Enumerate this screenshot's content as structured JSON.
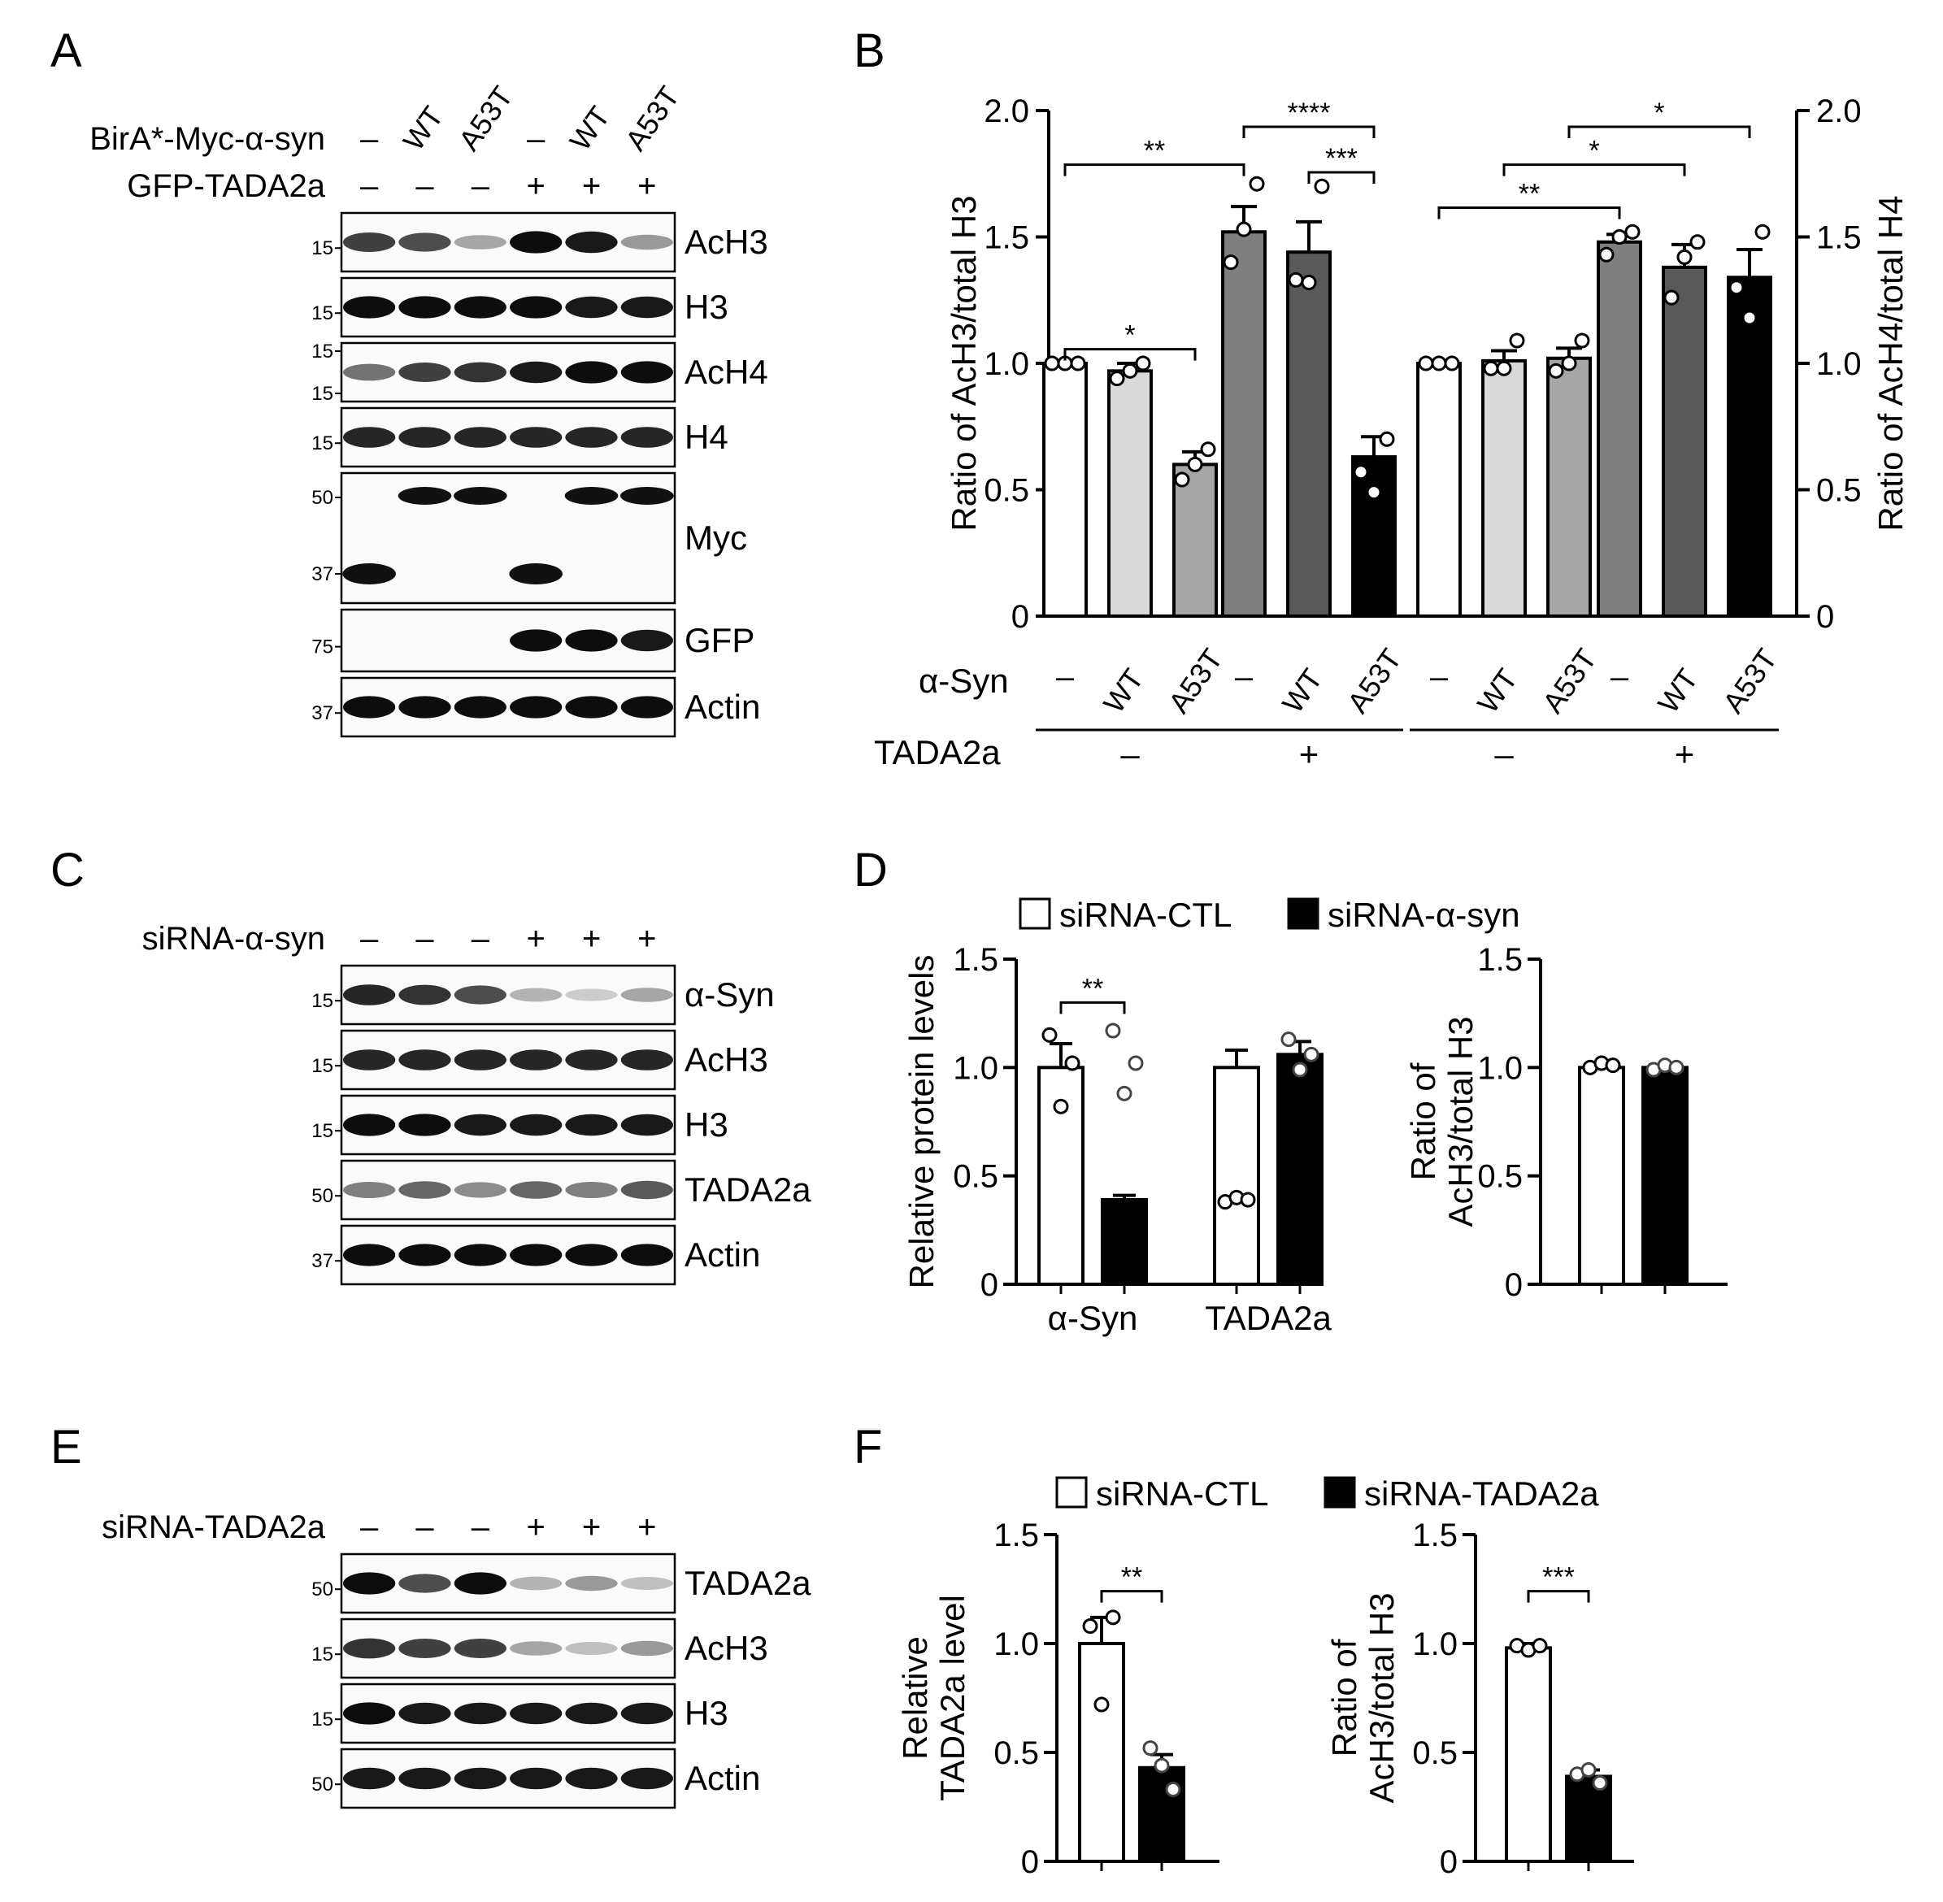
{
  "colors": {
    "white_bar": "#ffffff",
    "light_gray": "#d9d9d9",
    "mid_gray": "#a6a6a6",
    "dark_gray": "#7f7f7f",
    "darker_gray": "#595959",
    "black": "#000000",
    "star_teal": "#2d6a6a"
  },
  "panel_letters": [
    "A",
    "B",
    "C",
    "D",
    "E",
    "F"
  ],
  "blots": {
    "A": {
      "row_labels": [
        {
          "name": "BirA*-Myc-α-syn",
          "values": [
            "–",
            "WT",
            "A53T",
            "–",
            "WT",
            "A53T"
          ]
        },
        {
          "name": "GFP-TADA2a",
          "values": [
            "–",
            "–",
            "–",
            "+",
            "+",
            "+"
          ]
        }
      ],
      "bands": [
        {
          "label": "AcH3",
          "markers": [
            "15"
          ],
          "intensity": [
            0.75,
            0.7,
            0.35,
            0.95,
            0.9,
            0.4
          ]
        },
        {
          "label": "H3",
          "markers": [
            "15"
          ],
          "intensity": [
            0.95,
            0.95,
            0.95,
            0.95,
            0.9,
            0.9
          ]
        },
        {
          "label": "AcH4",
          "markers": [
            "15",
            "15"
          ],
          "intensity": [
            0.55,
            0.75,
            0.8,
            0.9,
            0.95,
            0.95
          ]
        },
        {
          "label": "H4",
          "markers": [
            "15"
          ],
          "intensity": [
            0.85,
            0.85,
            0.85,
            0.85,
            0.85,
            0.85
          ]
        },
        {
          "label": "Myc",
          "markers": [
            "50",
            "37"
          ],
          "intensity": [
            0,
            0,
            0,
            0,
            0,
            0
          ]
        },
        {
          "label": "GFP",
          "markers": [
            "75"
          ],
          "intensity": [
            0,
            0,
            0,
            0.95,
            0.95,
            0.9
          ]
        },
        {
          "label": "Actin",
          "markers": [
            "37"
          ],
          "intensity": [
            0.95,
            0.95,
            0.95,
            0.95,
            0.95,
            0.95
          ]
        }
      ]
    },
    "C": {
      "row_labels": [
        {
          "name": "siRNA-α-syn",
          "values": [
            "–",
            "–",
            "–",
            "+",
            "+",
            "+"
          ]
        }
      ],
      "bands": [
        {
          "label": "α-Syn",
          "markers": [
            "15"
          ],
          "intensity": [
            0.85,
            0.8,
            0.7,
            0.3,
            0.2,
            0.35
          ]
        },
        {
          "label": "AcH3",
          "markers": [
            "15"
          ],
          "intensity": [
            0.85,
            0.85,
            0.85,
            0.85,
            0.85,
            0.85
          ]
        },
        {
          "label": "H3",
          "markers": [
            "15"
          ],
          "intensity": [
            0.95,
            0.95,
            0.9,
            0.9,
            0.9,
            0.9
          ]
        },
        {
          "label": "TADA2a",
          "markers": [
            "50"
          ],
          "intensity": [
            0.5,
            0.6,
            0.45,
            0.6,
            0.5,
            0.65
          ]
        },
        {
          "label": "Actin",
          "markers": [
            "37"
          ],
          "intensity": [
            0.95,
            0.95,
            0.95,
            0.95,
            0.95,
            0.95
          ]
        }
      ]
    },
    "E": {
      "row_labels": [
        {
          "name": "siRNA-TADA2a",
          "values": [
            "–",
            "–",
            "–",
            "+",
            "+",
            "+"
          ]
        }
      ],
      "bands": [
        {
          "label": "TADA2a",
          "markers": [
            "50"
          ],
          "intensity": [
            0.95,
            0.7,
            0.95,
            0.3,
            0.4,
            0.25
          ]
        },
        {
          "label": "AcH3",
          "markers": [
            "15"
          ],
          "intensity": [
            0.8,
            0.75,
            0.75,
            0.35,
            0.25,
            0.4
          ]
        },
        {
          "label": "H3",
          "markers": [
            "15"
          ],
          "intensity": [
            0.95,
            0.9,
            0.9,
            0.9,
            0.9,
            0.9
          ]
        },
        {
          "label": "Actin",
          "markers": [
            "50"
          ],
          "intensity": [
            0.9,
            0.9,
            0.9,
            0.9,
            0.9,
            0.9
          ]
        }
      ]
    }
  },
  "chart_data": [
    {
      "panel": "B",
      "type": "bar",
      "ylabel": "Ratio of AcH3/total H3",
      "ylabel_right": "Ratio of AcH4/total H4",
      "ylim": [
        0,
        2.0
      ],
      "yticks": [
        "0",
        "0.5",
        "1.0",
        "1.5",
        "2.0"
      ],
      "row_label_x": "α-Syn",
      "row_label_group": "TADA2a",
      "categories": [
        "–",
        "WT",
        "A53T",
        "–",
        "WT",
        "A53T",
        "–",
        "WT",
        "A53T",
        "–",
        "WT",
        "A53T"
      ],
      "group_labels": [
        "–",
        "+",
        "–",
        "+"
      ],
      "values": [
        1.0,
        0.97,
        0.6,
        1.52,
        1.44,
        0.63,
        1.0,
        1.01,
        1.02,
        1.48,
        1.38,
        1.34
      ],
      "errors": [
        0,
        0.03,
        0.05,
        0.1,
        0.12,
        0.08,
        0,
        0.04,
        0.04,
        0.03,
        0.09,
        0.11
      ],
      "points": [
        [
          1.0,
          1.0,
          1.0
        ],
        [
          0.94,
          0.97,
          1.0
        ],
        [
          0.54,
          0.6,
          0.66
        ],
        [
          1.4,
          1.53,
          1.71
        ],
        [
          1.33,
          1.32,
          1.7
        ],
        [
          0.57,
          0.49,
          0.7
        ],
        [
          1.0,
          1.0,
          1.0
        ],
        [
          0.98,
          0.98,
          1.09
        ],
        [
          0.97,
          1.0,
          1.09
        ],
        [
          1.43,
          1.5,
          1.52
        ],
        [
          1.26,
          1.42,
          1.48
        ],
        [
          1.3,
          1.18,
          1.52
        ]
      ],
      "significance": [
        {
          "from": 0,
          "to": 2,
          "y": 1.12,
          "label": "*"
        },
        {
          "from": 0,
          "to": 3,
          "y": 1.85,
          "label": "**"
        },
        {
          "from": 3,
          "to": 5,
          "y": 2.0,
          "label": "****"
        },
        {
          "from": 4,
          "to": 5,
          "y": 1.82,
          "label": "***"
        },
        {
          "from": 6,
          "to": 9,
          "y": 1.68,
          "label": "**"
        },
        {
          "from": 7,
          "to": 10,
          "y": 1.85,
          "label": "*"
        },
        {
          "from": 8,
          "to": 11,
          "y": 2.0,
          "label": "*"
        }
      ]
    },
    {
      "panel": "D",
      "type": "bar",
      "legend": [
        "siRNA-CTL",
        "siRNA-α-syn"
      ],
      "subcharts": [
        {
          "ylabel": "Relative protein levels",
          "ylim": [
            0,
            1.5
          ],
          "yticks": [
            "0",
            "0.5",
            "1.0",
            "1.5"
          ],
          "categories": [
            "α-Syn",
            "TADA2a"
          ],
          "series": [
            {
              "name": "siRNA-CTL",
              "values": [
                1.0,
                1.0
              ],
              "errors": [
                0.11,
                0.08
              ]
            },
            {
              "name": "siRNA-α-syn",
              "values": [
                0.39,
                1.06
              ],
              "errors": [
                0.02,
                0.06
              ]
            }
          ],
          "points": [
            [
              [
                1.15,
                0.82,
                1.02
              ],
              [
                1.17,
                0.88,
                1.02
              ]
            ],
            [
              [
                0.38,
                0.4,
                0.39
              ],
              [
                1.13,
                0.99,
                1.06
              ]
            ]
          ],
          "significance": [
            {
              "category": 0,
              "y": 1.3,
              "label": "**"
            }
          ]
        },
        {
          "ylabel": "Ratio of AcH3/total H3",
          "ylim": [
            0,
            1.5
          ],
          "yticks": [
            "0",
            "0.5",
            "1.0",
            "1.5"
          ],
          "categories": [
            ""
          ],
          "series": [
            {
              "name": "siRNA-CTL",
              "values": [
                1.0
              ],
              "errors": [
                0.02
              ]
            },
            {
              "name": "siRNA-α-syn",
              "values": [
                1.0
              ],
              "errors": [
                0.01
              ]
            }
          ],
          "points": [
            [
              [
                1.0,
                1.02,
                1.01
              ],
              [
                0.99,
                1.01,
                1.0
              ]
            ]
          ]
        }
      ]
    },
    {
      "panel": "F",
      "type": "bar",
      "legend": [
        "siRNA-CTL",
        "siRNA-TADA2a"
      ],
      "subcharts": [
        {
          "ylabel": "Relative TADA2a level",
          "ylim": [
            0,
            1.5
          ],
          "yticks": [
            "0",
            "0.5",
            "1.0",
            "1.5"
          ],
          "categories": [
            ""
          ],
          "series": [
            {
              "name": "siRNA-CTL",
              "values": [
                1.0
              ],
              "errors": [
                0.12
              ]
            },
            {
              "name": "siRNA-TADA2a",
              "values": [
                0.43
              ],
              "errors": [
                0.06
              ]
            }
          ],
          "points": [
            [
              [
                1.08,
                0.72,
                1.12
              ],
              [
                0.52,
                0.44,
                0.33
              ]
            ]
          ],
          "significance": [
            {
              "category": 0,
              "y": 1.24,
              "label": "**"
            }
          ]
        },
        {
          "ylabel": "Ratio of AcH3/total H3",
          "ylim": [
            0,
            1.5
          ],
          "yticks": [
            "0",
            "0.5",
            "1.0",
            "1.5"
          ],
          "categories": [
            ""
          ],
          "series": [
            {
              "name": "siRNA-CTL",
              "values": [
                0.98
              ],
              "errors": [
                0.02
              ]
            },
            {
              "name": "siRNA-TADA2a",
              "values": [
                0.39
              ],
              "errors": [
                0.03
              ]
            }
          ],
          "points": [
            [
              [
                0.99,
                0.97,
                0.99
              ],
              [
                0.4,
                0.42,
                0.36
              ]
            ]
          ],
          "significance": [
            {
              "category": 0,
              "y": 1.24,
              "label": "***"
            }
          ]
        }
      ]
    }
  ]
}
